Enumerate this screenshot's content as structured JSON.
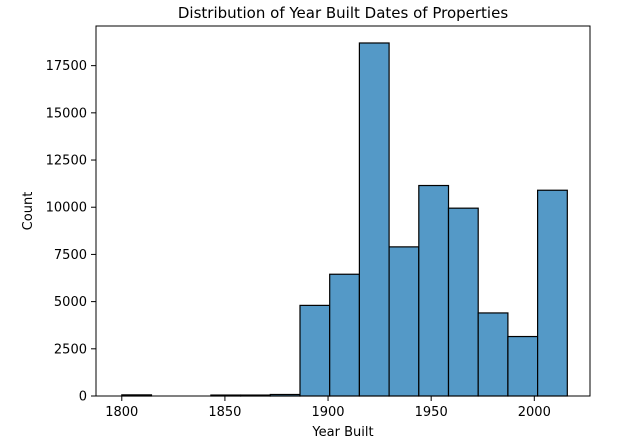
{
  "chart_data": {
    "type": "bar",
    "title": "Distribution of Year Built Dates of Properties",
    "xlabel": "Year Built",
    "ylabel": "Count",
    "xlim": [
      1787.5,
      2027
    ],
    "ylim": [
      0,
      19600
    ],
    "xticks": [
      1800,
      1850,
      1900,
      1950,
      2000
    ],
    "yticks": [
      0,
      2500,
      5000,
      7500,
      10000,
      12500,
      15000,
      17500
    ],
    "bar_color": "#5499c7",
    "bins": [
      {
        "start": 1800.0,
        "end": 1814.4,
        "count": 60
      },
      {
        "start": 1814.4,
        "end": 1828.8,
        "count": 0
      },
      {
        "start": 1828.8,
        "end": 1843.2,
        "count": 0
      },
      {
        "start": 1843.2,
        "end": 1857.6,
        "count": 50
      },
      {
        "start": 1857.6,
        "end": 1872.0,
        "count": 50
      },
      {
        "start": 1872.0,
        "end": 1886.4,
        "count": 80
      },
      {
        "start": 1886.4,
        "end": 1900.8,
        "count": 4800
      },
      {
        "start": 1900.8,
        "end": 1915.2,
        "count": 6450
      },
      {
        "start": 1915.2,
        "end": 1929.6,
        "count": 18700
      },
      {
        "start": 1929.6,
        "end": 1944.0,
        "count": 7900
      },
      {
        "start": 1944.0,
        "end": 1958.4,
        "count": 11150
      },
      {
        "start": 1958.4,
        "end": 1972.8,
        "count": 9950
      },
      {
        "start": 1972.8,
        "end": 1987.2,
        "count": 4400
      },
      {
        "start": 1987.2,
        "end": 2001.6,
        "count": 3150
      },
      {
        "start": 2001.6,
        "end": 2016.0,
        "count": 10900
      }
    ]
  }
}
